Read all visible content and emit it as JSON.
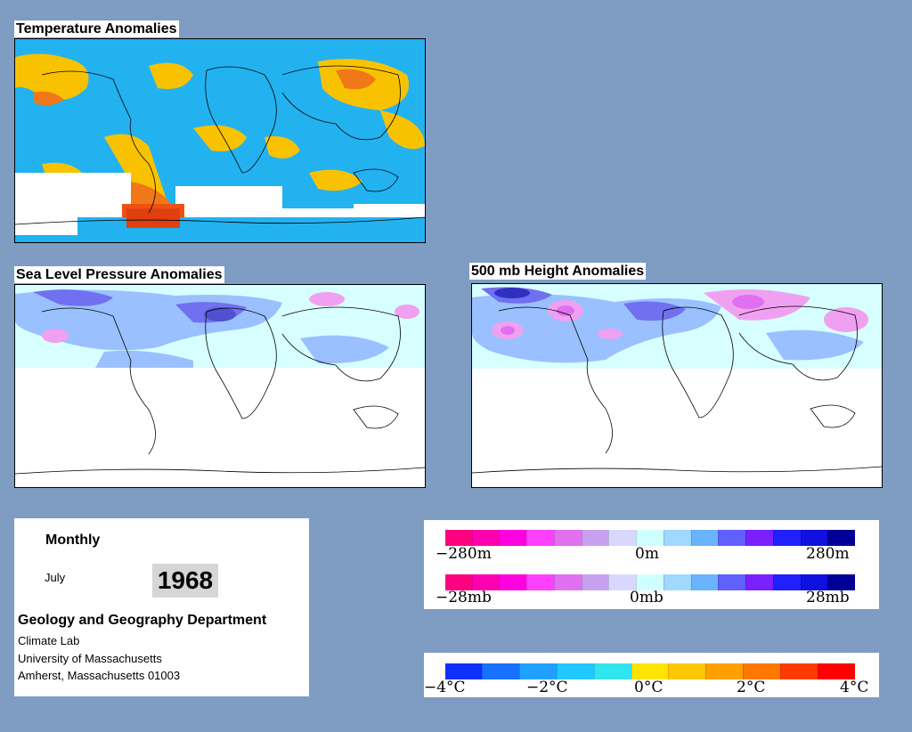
{
  "titles": {
    "temperature": "Temperature Anomalies",
    "slp": "Sea Level Pressure Anomalies",
    "height500": "500 mb Height Anomalies"
  },
  "info": {
    "period": "Monthly",
    "month": "July",
    "year": "1968",
    "department": "Geology and Geography Department",
    "lab": "Climate Lab",
    "university": "University of Massachusetts",
    "address": "Amherst, Massachusetts 01003"
  },
  "legend_height": {
    "labels": [
      "−280m",
      "0m",
      "280m"
    ],
    "colors": [
      "#ff0080",
      "#ff00b0",
      "#ff00e0",
      "#ff40ff",
      "#e070f0",
      "#c8a0f0",
      "#d8d8ff",
      "#d0ffff",
      "#a0d8ff",
      "#6ab4ff",
      "#6060ff",
      "#7a20ff",
      "#2020ff",
      "#1010e0",
      "#000098"
    ]
  },
  "legend_pressure": {
    "labels": [
      "−28mb",
      "0mb",
      "28mb"
    ],
    "colors": [
      "#ff0080",
      "#ff00b0",
      "#ff00e0",
      "#ff40ff",
      "#e070f0",
      "#c8a0f0",
      "#d8d8ff",
      "#d0ffff",
      "#a0d8ff",
      "#6ab4ff",
      "#6060ff",
      "#7a20ff",
      "#2020ff",
      "#1010e0",
      "#000098"
    ]
  },
  "legend_temperature": {
    "labels": [
      "−4°C",
      "−2°C",
      "0°C",
      "2°C",
      "4°C"
    ],
    "colors": [
      "#1030ff",
      "#1870ff",
      "#20a0ff",
      "#20c8ff",
      "#30e4f0",
      "#ffe400",
      "#ffc800",
      "#ffa000",
      "#ff7800",
      "#ff3c00",
      "#ff0000"
    ]
  },
  "colors": {
    "background": "#7f9cc3",
    "ocean_cool": "#1ab0f0",
    "warm": "#ffc000",
    "hot": "#f07010",
    "low_pressure": "#7070f0",
    "high_pressure": "#f0a0f0",
    "neutral": "#d8ffff"
  }
}
